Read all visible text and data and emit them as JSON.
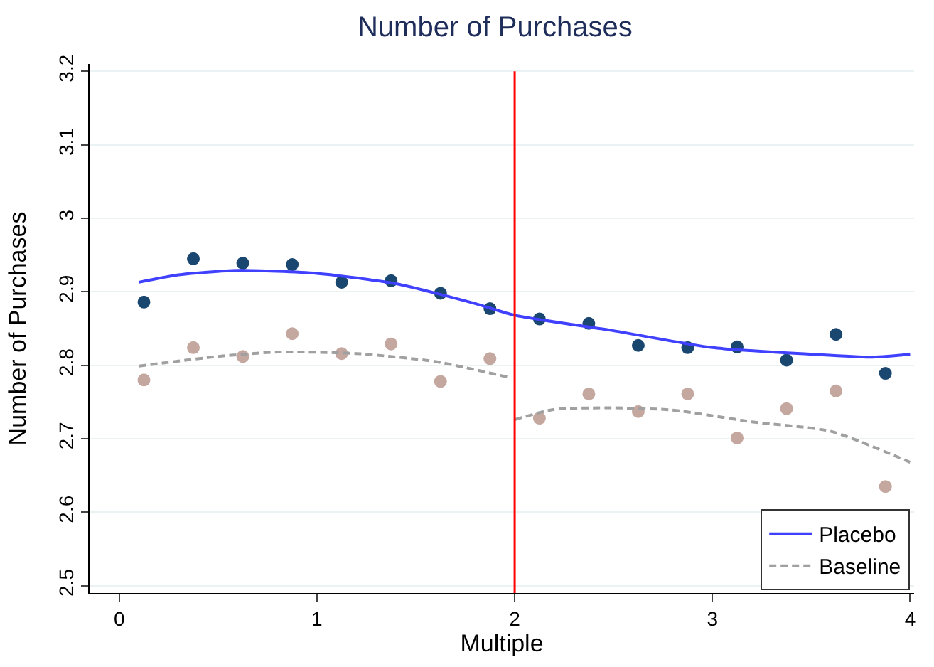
{
  "chart_data": {
    "type": "scatter",
    "title": "Number of Purchases",
    "xlabel": "Multiple",
    "ylabel": "Number of Purchases",
    "xlim": [
      -0.15,
      4.02
    ],
    "xticks": [
      0,
      1,
      2,
      3,
      4
    ],
    "ylim": [
      2.49,
      3.21
    ],
    "yticks": [
      2.5,
      2.6,
      2.7,
      2.8,
      2.9,
      3,
      3.1,
      3.2
    ],
    "grid": "y",
    "legend": "bottom right",
    "series": [
      {
        "marker": "circle",
        "color": "#1a476f",
        "x": [
          0.125,
          0.375,
          0.625,
          0.875,
          1.125,
          1.375,
          1.625,
          1.875,
          2.125,
          2.375,
          2.625,
          2.875,
          3.125,
          3.375,
          3.625,
          3.875
        ],
        "values": [
          2.886,
          2.945,
          2.939,
          2.937,
          2.913,
          2.915,
          2.898,
          2.877,
          2.863,
          2.857,
          2.827,
          2.824,
          2.825,
          2.807,
          2.842,
          2.789
        ]
      },
      {
        "marker": "circle",
        "color": "#c4a8a0",
        "x": [
          0.125,
          0.375,
          0.625,
          0.875,
          1.125,
          1.375,
          1.625,
          1.875,
          2.125,
          2.375,
          2.625,
          2.875,
          3.125,
          3.375,
          3.625,
          3.875
        ],
        "values": [
          2.78,
          2.824,
          2.812,
          2.843,
          2.816,
          2.829,
          2.778,
          2.809,
          2.728,
          2.761,
          2.737,
          2.761,
          2.701,
          2.741,
          2.765,
          2.635
        ]
      },
      {
        "type": "line",
        "name": "Placebo",
        "line_style": "solid",
        "color": "#4040ff",
        "x": [
          0.1,
          0.3,
          0.6,
          1.0,
          1.4,
          1.8,
          2.0,
          2.5,
          3.0,
          3.5,
          3.8,
          4.0
        ],
        "values": [
          2.913,
          2.923,
          2.929,
          2.925,
          2.911,
          2.884,
          2.868,
          2.847,
          2.824,
          2.815,
          2.811,
          2.815
        ]
      },
      {
        "type": "line",
        "name": "Baseline",
        "line_style": "dashed",
        "color": "#a0a0a0",
        "x": [
          0.1,
          0.5,
          0.8,
          1.2,
          1.6,
          1.98,
          1.99,
          2.0,
          2.2,
          2.5,
          2.8,
          3.2,
          3.6,
          4.0
        ],
        "values": [
          2.799,
          2.812,
          2.818,
          2.816,
          2.805,
          2.783,
          null,
          2.726,
          2.74,
          2.742,
          2.739,
          2.723,
          2.71,
          2.668
        ]
      }
    ],
    "ref_lines": [
      {
        "axis": "x",
        "value": 2,
        "color": "#ff0000",
        "line_style": "solid"
      }
    ]
  }
}
